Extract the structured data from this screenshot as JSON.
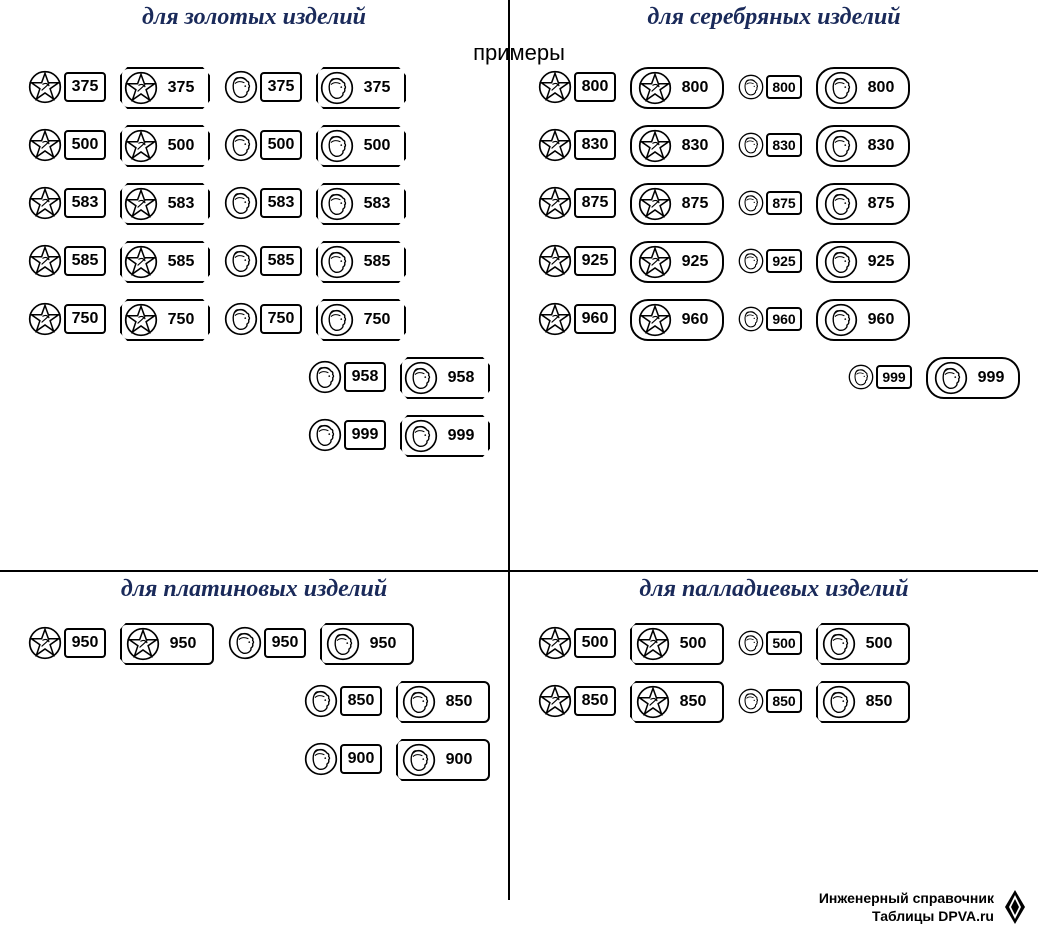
{
  "subtitle": "примеры",
  "colors": {
    "title_color": "#1a2a5a",
    "line_color": "#000000",
    "background": "#ffffff"
  },
  "typography": {
    "title_fontsize": 24,
    "number_fontsize": 16,
    "subtitle_fontsize": 22
  },
  "emblems": {
    "star": "five-pointed star in circle with hammer-and-sickle",
    "head": "female profile head in circle (kokoshnik)"
  },
  "frame_shapes": [
    "none",
    "spatula",
    "barrel",
    "hex"
  ],
  "quadrants": {
    "gold": {
      "title": "для золотых изделий",
      "rows": [
        {
          "offset": false,
          "items": [
            {
              "emblem": "star",
              "frame": "none",
              "value": "375"
            },
            {
              "emblem": "star",
              "frame": "spatula",
              "value": "375"
            },
            {
              "emblem": "head",
              "frame": "none",
              "value": "375"
            },
            {
              "emblem": "head",
              "frame": "spatula",
              "value": "375"
            }
          ]
        },
        {
          "offset": false,
          "items": [
            {
              "emblem": "star",
              "frame": "none",
              "value": "500"
            },
            {
              "emblem": "star",
              "frame": "spatula",
              "value": "500"
            },
            {
              "emblem": "head",
              "frame": "none",
              "value": "500"
            },
            {
              "emblem": "head",
              "frame": "spatula",
              "value": "500"
            }
          ]
        },
        {
          "offset": false,
          "items": [
            {
              "emblem": "star",
              "frame": "none",
              "value": "583"
            },
            {
              "emblem": "star",
              "frame": "spatula",
              "value": "583"
            },
            {
              "emblem": "head",
              "frame": "none",
              "value": "583"
            },
            {
              "emblem": "head",
              "frame": "spatula",
              "value": "583"
            }
          ]
        },
        {
          "offset": false,
          "items": [
            {
              "emblem": "star",
              "frame": "none",
              "value": "585"
            },
            {
              "emblem": "star",
              "frame": "spatula",
              "value": "585"
            },
            {
              "emblem": "head",
              "frame": "none",
              "value": "585"
            },
            {
              "emblem": "head",
              "frame": "spatula",
              "value": "585"
            }
          ]
        },
        {
          "offset": false,
          "items": [
            {
              "emblem": "star",
              "frame": "none",
              "value": "750"
            },
            {
              "emblem": "star",
              "frame": "spatula",
              "value": "750"
            },
            {
              "emblem": "head",
              "frame": "none",
              "value": "750"
            },
            {
              "emblem": "head",
              "frame": "spatula",
              "value": "750"
            }
          ]
        },
        {
          "offset": true,
          "items": [
            {
              "emblem": "head",
              "frame": "none",
              "value": "958"
            },
            {
              "emblem": "head",
              "frame": "spatula",
              "value": "958"
            }
          ]
        },
        {
          "offset": true,
          "items": [
            {
              "emblem": "head",
              "frame": "none",
              "value": "999"
            },
            {
              "emblem": "head",
              "frame": "spatula",
              "value": "999"
            }
          ]
        }
      ]
    },
    "silver": {
      "title": "для серебряных изделий",
      "rows": [
        {
          "offset": false,
          "items": [
            {
              "emblem": "star",
              "frame": "none",
              "value": "800"
            },
            {
              "emblem": "star",
              "frame": "barrel",
              "value": "800"
            },
            {
              "emblem": "head",
              "frame": "none",
              "value": "800",
              "small": true
            },
            {
              "emblem": "head",
              "frame": "barrel",
              "value": "800"
            }
          ]
        },
        {
          "offset": false,
          "items": [
            {
              "emblem": "star",
              "frame": "none",
              "value": "830"
            },
            {
              "emblem": "star",
              "frame": "barrel",
              "value": "830"
            },
            {
              "emblem": "head",
              "frame": "none",
              "value": "830",
              "small": true
            },
            {
              "emblem": "head",
              "frame": "barrel",
              "value": "830"
            }
          ]
        },
        {
          "offset": false,
          "items": [
            {
              "emblem": "star",
              "frame": "none",
              "value": "875"
            },
            {
              "emblem": "star",
              "frame": "barrel",
              "value": "875"
            },
            {
              "emblem": "head",
              "frame": "none",
              "value": "875",
              "small": true
            },
            {
              "emblem": "head",
              "frame": "barrel",
              "value": "875"
            }
          ]
        },
        {
          "offset": false,
          "items": [
            {
              "emblem": "star",
              "frame": "none",
              "value": "925"
            },
            {
              "emblem": "star",
              "frame": "barrel",
              "value": "925"
            },
            {
              "emblem": "head",
              "frame": "none",
              "value": "925",
              "small": true
            },
            {
              "emblem": "head",
              "frame": "barrel",
              "value": "925"
            }
          ]
        },
        {
          "offset": false,
          "items": [
            {
              "emblem": "star",
              "frame": "none",
              "value": "960"
            },
            {
              "emblem": "star",
              "frame": "barrel",
              "value": "960"
            },
            {
              "emblem": "head",
              "frame": "none",
              "value": "960",
              "small": true
            },
            {
              "emblem": "head",
              "frame": "barrel",
              "value": "960"
            }
          ]
        },
        {
          "offset": true,
          "items": [
            {
              "emblem": "head",
              "frame": "none",
              "value": "999",
              "small": true
            },
            {
              "emblem": "head",
              "frame": "barrel",
              "value": "999"
            }
          ]
        }
      ]
    },
    "platinum": {
      "title": "для платиновых изделий",
      "rows": [
        {
          "offset": false,
          "items": [
            {
              "emblem": "star",
              "frame": "none",
              "value": "950"
            },
            {
              "emblem": "star",
              "frame": "hex",
              "value": "950"
            },
            {
              "emblem": "head",
              "frame": "none",
              "value": "950"
            },
            {
              "emblem": "head",
              "frame": "hex",
              "value": "950"
            }
          ]
        },
        {
          "offset": true,
          "items": [
            {
              "emblem": "head",
              "frame": "none",
              "value": "850"
            },
            {
              "emblem": "head",
              "frame": "hex",
              "value": "850"
            }
          ]
        },
        {
          "offset": true,
          "items": [
            {
              "emblem": "head",
              "frame": "none",
              "value": "900"
            },
            {
              "emblem": "head",
              "frame": "hex",
              "value": "900"
            }
          ]
        }
      ]
    },
    "palladium": {
      "title": "для палладиевых изделий",
      "rows": [
        {
          "offset": false,
          "items": [
            {
              "emblem": "star",
              "frame": "none",
              "value": "500"
            },
            {
              "emblem": "star",
              "frame": "hex",
              "value": "500"
            },
            {
              "emblem": "head",
              "frame": "none",
              "value": "500",
              "small": true
            },
            {
              "emblem": "head",
              "frame": "hex",
              "value": "500"
            }
          ]
        },
        {
          "offset": false,
          "items": [
            {
              "emblem": "star",
              "frame": "none",
              "value": "850"
            },
            {
              "emblem": "star",
              "frame": "hex",
              "value": "850"
            },
            {
              "emblem": "head",
              "frame": "none",
              "value": "850",
              "small": true
            },
            {
              "emblem": "head",
              "frame": "hex",
              "value": "850"
            }
          ]
        }
      ]
    }
  },
  "footer": {
    "line1": "Инженерный справочник",
    "line2": "Таблицы DPVA.ru"
  }
}
